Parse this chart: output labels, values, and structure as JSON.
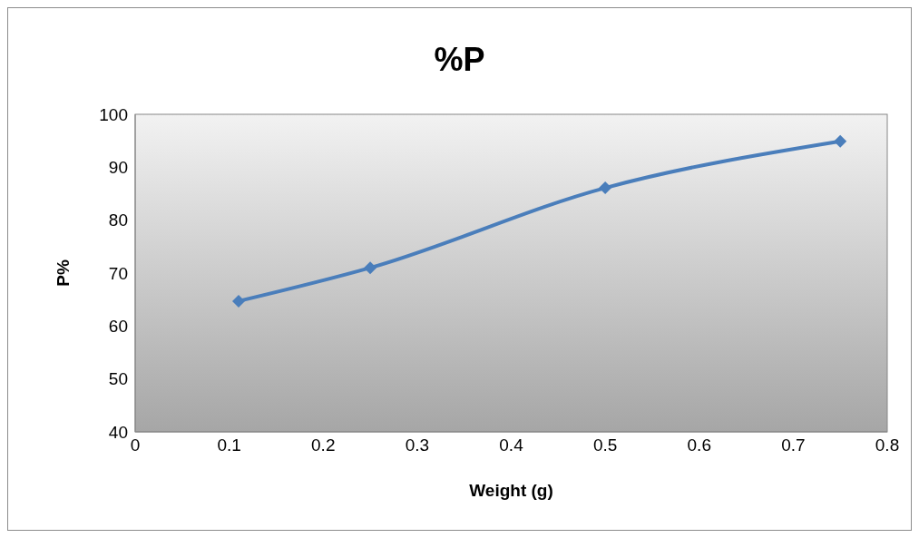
{
  "chart_data": {
    "type": "line",
    "title": "%P",
    "xlabel": "Weight (g)",
    "ylabel": "P%",
    "x": [
      0.11,
      0.25,
      0.5,
      0.75
    ],
    "series": [
      {
        "color": "#4a7ebb",
        "values": [
          64.7,
          71,
          86.1,
          94.9
        ]
      }
    ],
    "xlim": [
      0,
      0.8
    ],
    "xticks": [
      0,
      0.1,
      0.2,
      0.3,
      0.4,
      0.5,
      0.6,
      0.7,
      0.8
    ],
    "ylim": [
      40,
      100
    ],
    "yticks": [
      40,
      50,
      60,
      70,
      80,
      90,
      100
    ],
    "grid": false,
    "marker": "diamond",
    "line_style": "solid"
  }
}
